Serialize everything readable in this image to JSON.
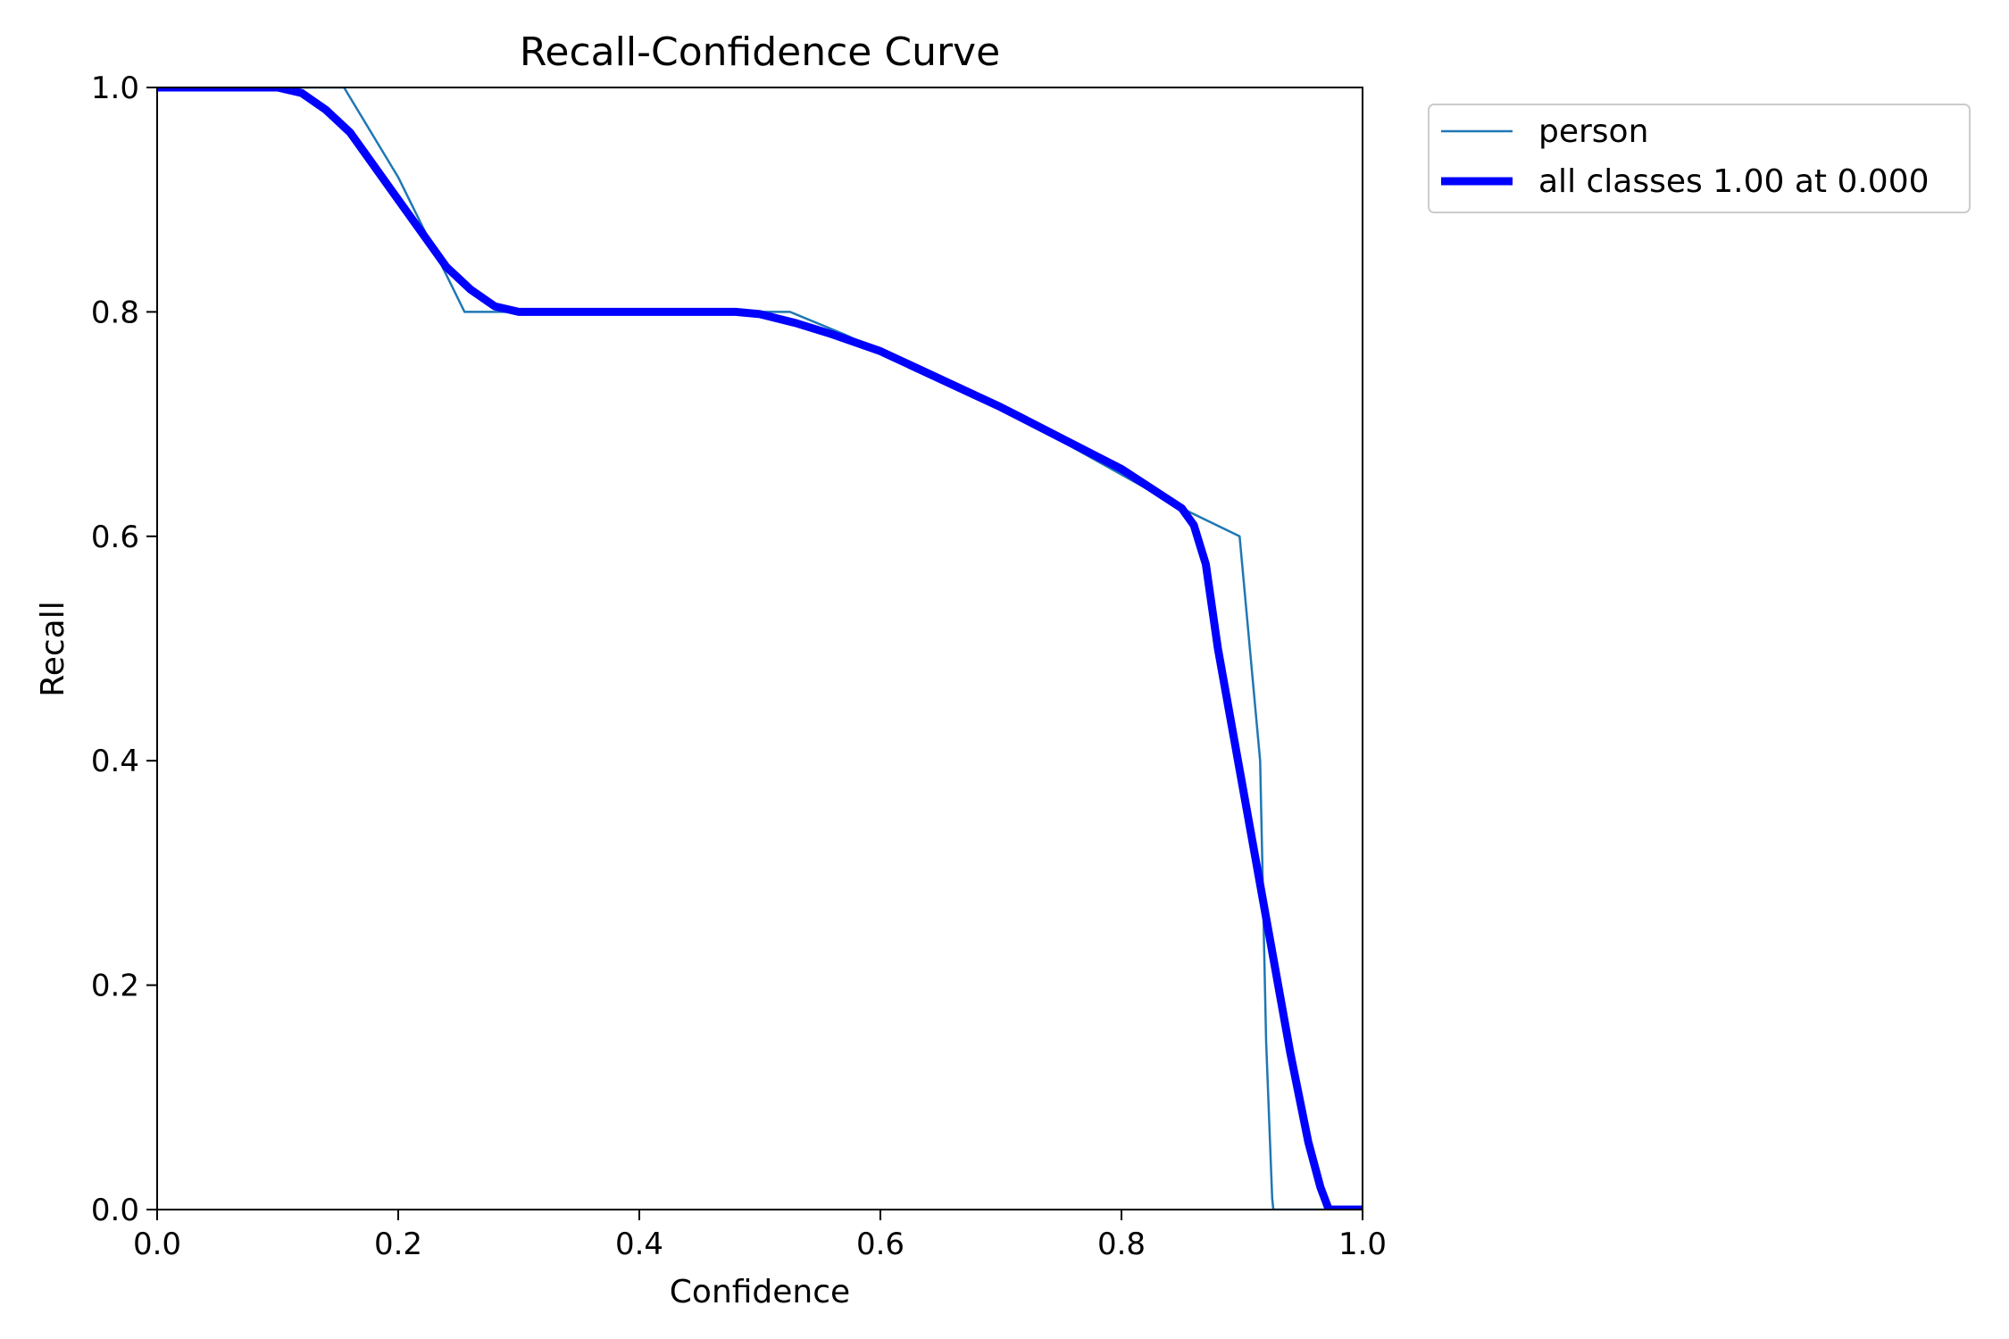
{
  "chart_data": {
    "type": "line",
    "title": "Recall-Confidence Curve",
    "xlabel": "Confidence",
    "ylabel": "Recall",
    "xlim": [
      0,
      1
    ],
    "ylim": [
      0,
      1
    ],
    "x_ticks": [
      {
        "value": 0.0,
        "label": "0.0"
      },
      {
        "value": 0.2,
        "label": "0.2"
      },
      {
        "value": 0.4,
        "label": "0.4"
      },
      {
        "value": 0.6,
        "label": "0.6"
      },
      {
        "value": 0.8,
        "label": "0.8"
      },
      {
        "value": 1.0,
        "label": "1.0"
      }
    ],
    "y_ticks": [
      {
        "value": 0.0,
        "label": "0.0"
      },
      {
        "value": 0.2,
        "label": "0.2"
      },
      {
        "value": 0.4,
        "label": "0.4"
      },
      {
        "value": 0.6,
        "label": "0.6"
      },
      {
        "value": 0.8,
        "label": "0.8"
      },
      {
        "value": 1.0,
        "label": "1.0"
      }
    ],
    "grid": false,
    "legend_position": "outside-top-right",
    "series": [
      {
        "name": "person",
        "color": "#1f77b4",
        "style": "thin",
        "x": [
          0.0,
          0.155,
          0.2,
          0.255,
          0.3,
          0.4,
          0.5,
          0.525,
          0.57,
          0.7,
          0.85,
          0.898,
          0.915,
          0.92,
          0.925,
          0.926,
          1.0
        ],
        "y": [
          1.0,
          1.0,
          0.92,
          0.8,
          0.8,
          0.8,
          0.8,
          0.8,
          0.78,
          0.715,
          0.625,
          0.6,
          0.4,
          0.15,
          0.01,
          0.0,
          0.0
        ]
      },
      {
        "name": "all classes 1.00 at 0.000",
        "color": "#0000ff",
        "style": "thick",
        "x": [
          0.0,
          0.05,
          0.1,
          0.12,
          0.14,
          0.16,
          0.18,
          0.2,
          0.22,
          0.24,
          0.26,
          0.28,
          0.3,
          0.35,
          0.4,
          0.45,
          0.48,
          0.5,
          0.53,
          0.56,
          0.6,
          0.7,
          0.8,
          0.85,
          0.86,
          0.87,
          0.88,
          0.9,
          0.92,
          0.94,
          0.955,
          0.965,
          0.972,
          0.98,
          1.0
        ],
        "y": [
          1.0,
          1.0,
          1.0,
          0.995,
          0.98,
          0.96,
          0.93,
          0.9,
          0.87,
          0.84,
          0.82,
          0.805,
          0.8,
          0.8,
          0.8,
          0.8,
          0.8,
          0.798,
          0.79,
          0.78,
          0.765,
          0.715,
          0.66,
          0.625,
          0.61,
          0.575,
          0.5,
          0.38,
          0.26,
          0.14,
          0.06,
          0.02,
          0.0,
          0.0,
          0.0
        ]
      }
    ]
  }
}
